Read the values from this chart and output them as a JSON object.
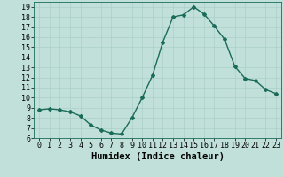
{
  "x": [
    0,
    1,
    2,
    3,
    4,
    5,
    6,
    7,
    8,
    9,
    10,
    11,
    12,
    13,
    14,
    15,
    16,
    17,
    18,
    19,
    20,
    21,
    22,
    23
  ],
  "y": [
    8.8,
    8.9,
    8.8,
    8.6,
    8.2,
    7.3,
    6.8,
    6.5,
    6.4,
    8.0,
    10.0,
    12.2,
    15.5,
    18.0,
    18.2,
    19.0,
    18.3,
    17.1,
    15.8,
    13.1,
    11.9,
    11.7,
    10.8,
    10.4
  ],
  "line_color": "#1a6b5a",
  "marker": "D",
  "marker_size": 2.0,
  "bg_color": "#c2e0da",
  "grid_color": "#aacfc8",
  "xlabel": "Humidex (Indice chaleur)",
  "xlim": [
    -0.5,
    23.5
  ],
  "ylim": [
    6,
    19.5
  ],
  "yticks": [
    6,
    7,
    8,
    9,
    10,
    11,
    12,
    13,
    14,
    15,
    16,
    17,
    18,
    19
  ],
  "xticks": [
    0,
    1,
    2,
    3,
    4,
    5,
    6,
    7,
    8,
    9,
    10,
    11,
    12,
    13,
    14,
    15,
    16,
    17,
    18,
    19,
    20,
    21,
    22,
    23
  ],
  "xlabel_fontsize": 7.5,
  "tick_fontsize": 6.0,
  "line_width": 1.0
}
